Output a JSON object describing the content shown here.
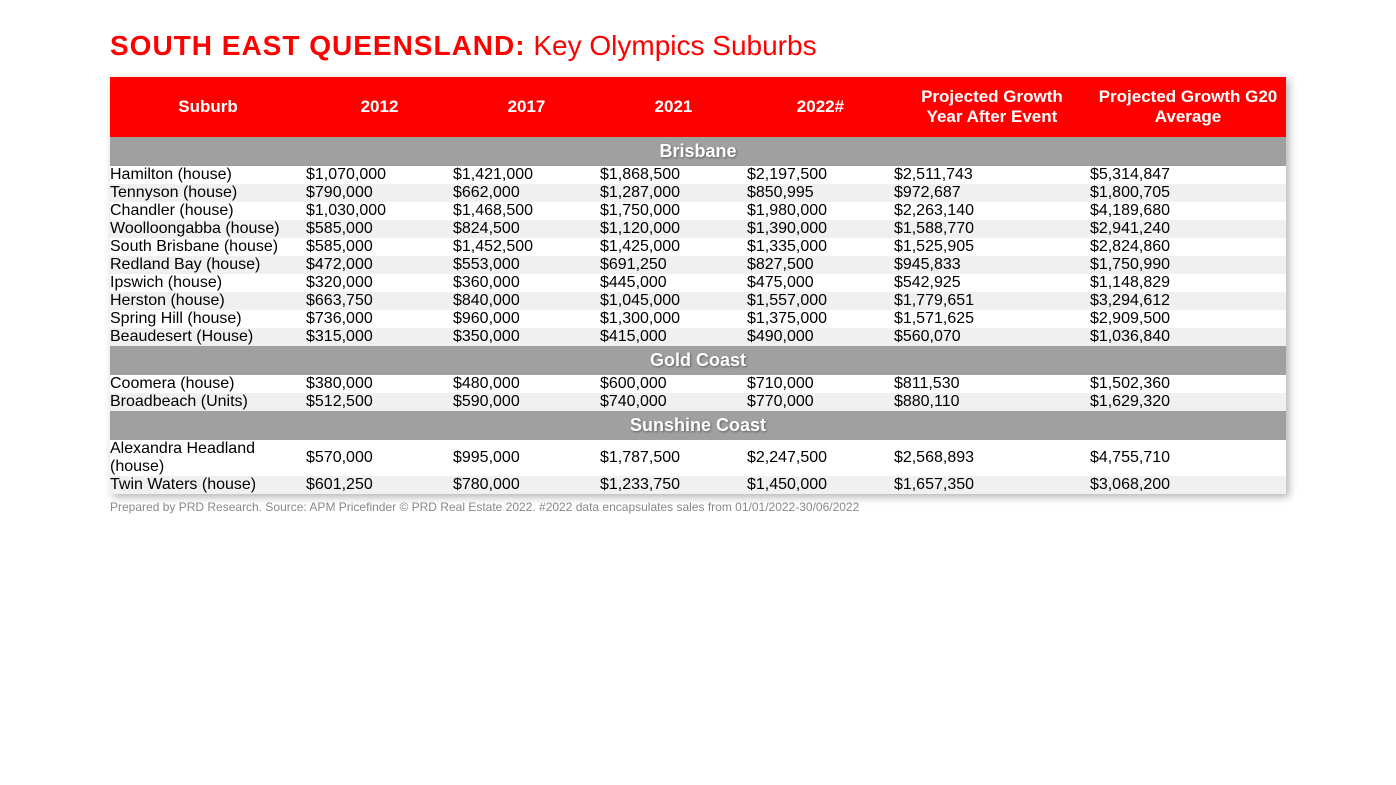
{
  "title": {
    "bold": "SOUTH EAST QUEENSLAND:",
    "light": " Key Olympics Suburbs"
  },
  "colors": {
    "header_bg": "#ff0000",
    "header_text": "#ffffff",
    "section_bg": "#a0a0a0",
    "section_text": "#ffffff",
    "row_text": "#555555",
    "row_alt_bg": "#f0f0f0",
    "row_bg": "#ffffff",
    "title_color": "#ff0000",
    "footnote_color": "#888888"
  },
  "columns": [
    "Suburb",
    "2012",
    "2017",
    "2021",
    "2022#",
    "Projected Growth Year After Event",
    "Projected Growth G20 Average"
  ],
  "sections": [
    {
      "name": "Brisbane",
      "rows": [
        {
          "suburb": "Hamilton (house)",
          "v2012": "$1,070,000",
          "v2017": "$1,421,000",
          "v2021": "$1,868,500",
          "v2022": "$2,197,500",
          "proj_year": "$2,511,743",
          "proj_g20": "$5,314,847"
        },
        {
          "suburb": "Tennyson (house)",
          "v2012": "$790,000",
          "v2017": "$662,000",
          "v2021": "$1,287,000",
          "v2022": "$850,995",
          "proj_year": "$972,687",
          "proj_g20": "$1,800,705"
        },
        {
          "suburb": "Chandler (house)",
          "v2012": "$1,030,000",
          "v2017": "$1,468,500",
          "v2021": "$1,750,000",
          "v2022": "$1,980,000",
          "proj_year": "$2,263,140",
          "proj_g20": "$4,189,680"
        },
        {
          "suburb": "Woolloongabba (house)",
          "v2012": "$585,000",
          "v2017": "$824,500",
          "v2021": "$1,120,000",
          "v2022": "$1,390,000",
          "proj_year": "$1,588,770",
          "proj_g20": "$2,941,240"
        },
        {
          "suburb": "South Brisbane (house)",
          "v2012": "$585,000",
          "v2017": "$1,452,500",
          "v2021": "$1,425,000",
          "v2022": "$1,335,000",
          "proj_year": "$1,525,905",
          "proj_g20": "$2,824,860"
        },
        {
          "suburb": "Redland Bay (house)",
          "v2012": "$472,000",
          "v2017": "$553,000",
          "v2021": "$691,250",
          "v2022": "$827,500",
          "proj_year": "$945,833",
          "proj_g20": "$1,750,990"
        },
        {
          "suburb": "Ipswich (house)",
          "v2012": "$320,000",
          "v2017": "$360,000",
          "v2021": "$445,000",
          "v2022": "$475,000",
          "proj_year": "$542,925",
          "proj_g20": "$1,148,829"
        },
        {
          "suburb": "Herston (house)",
          "v2012": "$663,750",
          "v2017": "$840,000",
          "v2021": "$1,045,000",
          "v2022": "$1,557,000",
          "proj_year": "$1,779,651",
          "proj_g20": "$3,294,612"
        },
        {
          "suburb": "Spring Hill (house)",
          "v2012": "$736,000",
          "v2017": "$960,000",
          "v2021": "$1,300,000",
          "v2022": "$1,375,000",
          "proj_year": "$1,571,625",
          "proj_g20": "$2,909,500"
        },
        {
          "suburb": "Beaudesert (House)",
          "v2012": "$315,000",
          "v2017": "$350,000",
          "v2021": "$415,000",
          "v2022": "$490,000",
          "proj_year": "$560,070",
          "proj_g20": "$1,036,840"
        }
      ]
    },
    {
      "name": "Gold Coast",
      "rows": [
        {
          "suburb": "Coomera (house)",
          "v2012": "$380,000",
          "v2017": "$480,000",
          "v2021": "$600,000",
          "v2022": "$710,000",
          "proj_year": "$811,530",
          "proj_g20": "$1,502,360"
        },
        {
          "suburb": "Broadbeach (Units)",
          "v2012": "$512,500",
          "v2017": "$590,000",
          "v2021": "$740,000",
          "v2022": "$770,000",
          "proj_year": "$880,110",
          "proj_g20": "$1,629,320"
        }
      ]
    },
    {
      "name": "Sunshine Coast",
      "rows": [
        {
          "suburb": "Alexandra Headland (house)",
          "v2012": "$570,000",
          "v2017": "$995,000",
          "v2021": "$1,787,500",
          "v2022": "$2,247,500",
          "proj_year": "$2,568,893",
          "proj_g20": "$4,755,710"
        },
        {
          "suburb": "Twin Waters (house)",
          "v2012": "$601,250",
          "v2017": "$780,000",
          "v2021": "$1,233,750",
          "v2022": "$1,450,000",
          "proj_year": "$1,657,350",
          "proj_g20": "$3,068,200"
        }
      ]
    }
  ],
  "footnote": "Prepared by PRD Research. Source: APM Pricefinder © PRD Real Estate 2022. #2022 data encapsulates sales from 01/01/2022-30/06/2022"
}
